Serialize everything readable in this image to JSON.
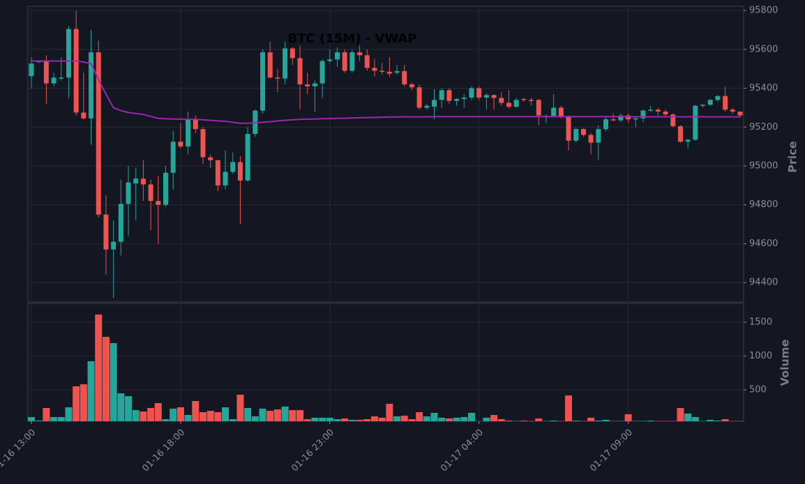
{
  "chart_data": {
    "type": "candlestick",
    "title": "BTC (15M) - VWAP",
    "categories": [
      "01-16 13:00",
      null,
      null,
      null,
      null,
      null,
      null,
      null,
      null,
      null,
      null,
      null,
      null,
      null,
      null,
      null,
      null,
      null,
      null,
      null,
      "01-16 18:00",
      null,
      null,
      null,
      null,
      null,
      null,
      null,
      null,
      null,
      null,
      null,
      null,
      null,
      null,
      null,
      null,
      null,
      null,
      null,
      "01-16 23:00",
      null,
      null,
      null,
      null,
      null,
      null,
      null,
      null,
      null,
      null,
      null,
      null,
      null,
      null,
      null,
      null,
      null,
      null,
      null,
      "01-17 04:00",
      null,
      null,
      null,
      null,
      null,
      null,
      null,
      null,
      null,
      null,
      null,
      null,
      null,
      null,
      null,
      null,
      null,
      null,
      null,
      "01-17 09:00",
      null,
      null,
      null,
      null,
      null,
      null,
      null,
      null,
      null,
      null,
      null,
      null,
      null,
      null,
      null
    ],
    "open": [
      95462,
      95535,
      95540,
      95425,
      95450,
      95455,
      95705,
      95275,
      95245,
      95585,
      94750,
      94570,
      94610,
      94805,
      94910,
      94935,
      94905,
      94820,
      94800,
      94965,
      95125,
      95100,
      95240,
      95190,
      95045,
      95030,
      94900,
      94970,
      95020,
      94925,
      95165,
      95285,
      95585,
      95455,
      95450,
      95605,
      95555,
      95420,
      95410,
      95425,
      95540,
      95548,
      95585,
      95490,
      95585,
      95570,
      95505,
      95490,
      95485,
      95480,
      95488,
      95420,
      95405,
      95300,
      95305,
      95340,
      95390,
      95335,
      95345,
      95352,
      95400,
      95352,
      95365,
      95350,
      95325,
      95305,
      95345,
      95340,
      95340,
      95252,
      95258,
      95300,
      95255,
      95130,
      95190,
      95160,
      95120,
      95190,
      95240,
      95235,
      95260,
      95240,
      95245,
      95285,
      95290,
      95280,
      95265,
      95205,
      95125,
      95135,
      95310,
      95315,
      95340,
      95360,
      95290,
      95280
    ],
    "high": [
      95560,
      95545,
      95570,
      95480,
      95560,
      95720,
      95800,
      95480,
      95700,
      95645,
      94850,
      94720,
      94930,
      95000,
      94990,
      95030,
      94930,
      94950,
      95000,
      95180,
      95220,
      95280,
      95260,
      95200,
      95060,
      95030,
      95080,
      95070,
      95050,
      95200,
      95290,
      95600,
      95640,
      95500,
      95640,
      95610,
      95620,
      95480,
      95440,
      95550,
      95600,
      95610,
      95600,
      95600,
      95620,
      95600,
      95550,
      95530,
      95560,
      95520,
      95520,
      95430,
      95420,
      95320,
      95395,
      95400,
      95400,
      95350,
      95370,
      95410,
      95410,
      95375,
      95370,
      95380,
      95390,
      95350,
      95350,
      95350,
      95345,
      95265,
      95370,
      95310,
      95260,
      95200,
      95195,
      95170,
      95210,
      95250,
      95270,
      95270,
      95270,
      95255,
      95290,
      95310,
      95300,
      95290,
      95270,
      95210,
      95140,
      95315,
      95320,
      95345,
      95365,
      95410,
      95300,
      95280
    ],
    "low": [
      95400,
      95530,
      95320,
      95410,
      95440,
      95350,
      95260,
      95240,
      95110,
      94735,
      94440,
      94320,
      94540,
      94640,
      94720,
      94820,
      94670,
      94600,
      94790,
      94880,
      95090,
      95060,
      95170,
      95010,
      94990,
      94870,
      94880,
      94960,
      94700,
      94920,
      95150,
      95270,
      95450,
      95380,
      95420,
      95520,
      95290,
      95370,
      95280,
      95350,
      95530,
      95510,
      95480,
      95480,
      95540,
      95490,
      95460,
      95470,
      95460,
      95470,
      95410,
      95390,
      95290,
      95290,
      95240,
      95300,
      95320,
      95310,
      95300,
      95340,
      95340,
      95290,
      95290,
      95310,
      95295,
      95300,
      95330,
      95310,
      95210,
      95220,
      95250,
      95245,
      95080,
      95120,
      95150,
      95060,
      95030,
      95180,
      95230,
      95225,
      95225,
      95200,
      95225,
      95280,
      95260,
      95255,
      95200,
      95120,
      95090,
      95130,
      95300,
      95310,
      95330,
      95280,
      95270,
      95250
    ],
    "close": [
      95527,
      95540,
      95425,
      95455,
      95455,
      95705,
      95275,
      95245,
      95585,
      94750,
      94570,
      94610,
      94805,
      94915,
      94935,
      94905,
      94820,
      94800,
      94965,
      95125,
      95100,
      95240,
      95190,
      95045,
      95030,
      94900,
      94970,
      95020,
      94925,
      95165,
      95285,
      95585,
      95455,
      95450,
      95605,
      95555,
      95420,
      95410,
      95425,
      95540,
      95548,
      95585,
      95490,
      95585,
      95570,
      95505,
      95490,
      95485,
      95475,
      95488,
      95420,
      95405,
      95300,
      95310,
      95340,
      95390,
      95335,
      95345,
      95352,
      95400,
      95352,
      95365,
      95350,
      95325,
      95305,
      95340,
      95340,
      95335,
      95260,
      95258,
      95300,
      95255,
      95130,
      95190,
      95160,
      95120,
      95190,
      95240,
      95235,
      95260,
      95240,
      95245,
      95285,
      95290,
      95280,
      95265,
      95205,
      95125,
      95135,
      95310,
      95315,
      95340,
      95360,
      95290,
      95280,
      95260
    ],
    "up_color": "#26a69a",
    "down_color": "#ef5350",
    "vwap": {
      "color": "#9c27b0",
      "values": [
        95540,
        95540,
        95540,
        95540,
        95540,
        95540,
        95540,
        95535,
        95527,
        95443,
        95370,
        95300,
        95285,
        95275,
        95270,
        95265,
        95255,
        95245,
        95243,
        95242,
        95241,
        95240,
        95240,
        95238,
        95235,
        95232,
        95230,
        95225,
        95220,
        95220,
        95222,
        95225,
        95228,
        95232,
        95235,
        95238,
        95240,
        95241,
        95242,
        95243,
        95244,
        95245,
        95246,
        95247,
        95248,
        95249,
        95250,
        95251,
        95252,
        95252,
        95253,
        95253,
        95253,
        95253,
        95254,
        95254,
        95254,
        95254,
        95254,
        95254,
        95254,
        95254,
        95254,
        95254,
        95254,
        95254,
        95254,
        95254,
        95254,
        95254,
        95254,
        95254,
        95254,
        95254,
        95254,
        95254,
        95254,
        95254,
        95254,
        95254,
        95254,
        95253,
        95253,
        95253,
        95253,
        95253,
        95253,
        95253,
        95253,
        95253,
        95253,
        95253,
        95253,
        95253,
        95253,
        95252
      ]
    },
    "ylim": [
      94300,
      95822
    ],
    "yticks": [
      94400,
      94600,
      94800,
      95000,
      95200,
      95400,
      95600,
      95800
    ],
    "ylabel": "Price",
    "grid": true,
    "volume": {
      "values": [
        98,
        46,
        232,
        98,
        98,
        242,
        552,
        582,
        923,
        1613,
        1283,
        1191,
        448,
        407,
        200,
        180,
        232,
        304,
        67,
        222,
        242,
        129,
        335,
        170,
        190,
        170,
        242,
        67,
        428,
        232,
        108,
        222,
        190,
        211,
        253,
        200,
        200,
        67,
        88,
        88,
        88,
        67,
        77,
        57,
        57,
        67,
        108,
        88,
        294,
        108,
        118,
        67,
        170,
        108,
        160,
        88,
        77,
        88,
        98,
        160,
        36,
        88,
        129,
        67,
        46,
        40,
        46,
        40,
        77,
        40,
        46,
        40,
        418,
        46,
        40,
        88,
        46,
        57,
        40,
        40,
        139,
        40,
        40,
        46,
        40,
        40,
        40,
        232,
        150,
        98,
        40,
        57,
        46,
        67,
        40,
        40
      ],
      "colors": [
        "#26a69a",
        "#26a69a",
        "#ef5350",
        "#26a69a",
        "#26a69a",
        "#26a69a",
        "#ef5350",
        "#ef5350",
        "#26a69a",
        "#ef5350",
        "#ef5350",
        "#26a69a",
        "#26a69a",
        "#26a69a",
        "#26a69a",
        "#ef5350",
        "#ef5350",
        "#ef5350",
        "#26a69a",
        "#26a69a",
        "#ef5350",
        "#26a69a",
        "#ef5350",
        "#ef5350",
        "#ef5350",
        "#ef5350",
        "#26a69a",
        "#26a69a",
        "#ef5350",
        "#26a69a",
        "#26a69a",
        "#26a69a",
        "#ef5350",
        "#ef5350",
        "#26a69a",
        "#ef5350",
        "#ef5350",
        "#ef5350",
        "#26a69a",
        "#26a69a",
        "#26a69a",
        "#26a69a",
        "#ef5350",
        "#26a69a",
        "#ef5350",
        "#ef5350",
        "#ef5350",
        "#ef5350",
        "#ef5350",
        "#26a69a",
        "#ef5350",
        "#ef5350",
        "#ef5350",
        "#26a69a",
        "#26a69a",
        "#26a69a",
        "#ef5350",
        "#26a69a",
        "#26a69a",
        "#26a69a",
        "#ef5350",
        "#26a69a",
        "#ef5350",
        "#ef5350",
        "#ef5350",
        "#26a69a",
        "#ef5350",
        "#ef5350",
        "#ef5350",
        "#26a69a",
        "#26a69a",
        "#ef5350",
        "#ef5350",
        "#26a69a",
        "#ef5350",
        "#ef5350",
        "#26a69a",
        "#26a69a",
        "#ef5350",
        "#26a69a",
        "#ef5350",
        "#26a69a",
        "#26a69a",
        "#26a69a",
        "#ef5350",
        "#ef5350",
        "#ef5350",
        "#ef5350",
        "#26a69a",
        "#26a69a",
        "#26a69a",
        "#26a69a",
        "#26a69a",
        "#ef5350",
        "#ef5350",
        "#ef5350"
      ],
      "ylim": [
        36,
        1778
      ],
      "yticks": [
        500,
        1000,
        1500
      ],
      "ylabel": "Volume"
    }
  }
}
